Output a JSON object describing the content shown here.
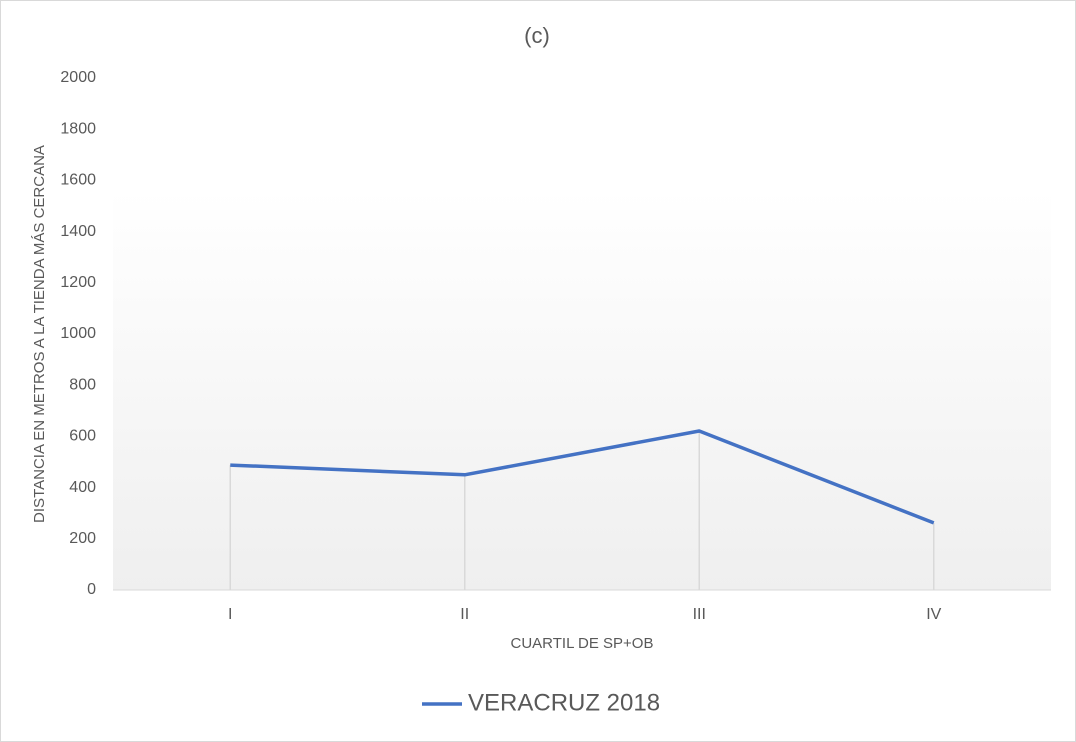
{
  "chart_data": {
    "type": "line",
    "title": "(c)",
    "x_label": "CUARTIL DE SP+OB",
    "y_label": "DISTANCIA EN METROS A LA TIENDA MÁS CERCANA",
    "categories": [
      "I",
      "II",
      "III",
      "IV"
    ],
    "series": [
      {
        "name": "VERACRUZ 2018",
        "color": "#4472c4",
        "values": [
          488,
          450,
          621,
          262
        ]
      }
    ],
    "ylim": [
      0,
      2000
    ],
    "yticks": [
      0,
      200,
      400,
      600,
      800,
      1000,
      1200,
      1400,
      1600,
      1800,
      2000
    ],
    "drop_lines": true,
    "legend": "bottom"
  }
}
